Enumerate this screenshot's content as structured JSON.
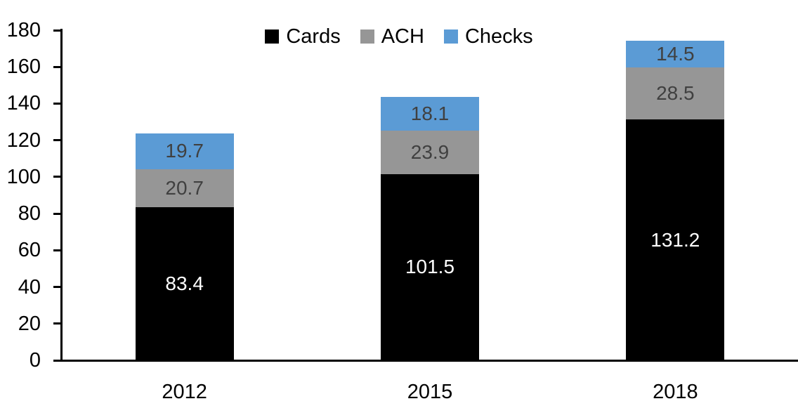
{
  "chart_data": {
    "type": "bar",
    "stacked": true,
    "title": "",
    "categories": [
      "2012",
      "2015",
      "2018"
    ],
    "series": [
      {
        "name": "Cards",
        "color": "#000000",
        "label_color": "#FFFFFF",
        "values": [
          83.4,
          101.5,
          131.2
        ]
      },
      {
        "name": "ACH",
        "color": "#969696",
        "label_color": "#404040",
        "values": [
          20.7,
          23.9,
          28.5
        ]
      },
      {
        "name": "Checks",
        "color": "#5B9BD5",
        "label_color": "#404040",
        "values": [
          19.7,
          18.1,
          14.5
        ]
      }
    ],
    "totals": [
      123.8,
      143.5,
      174.2
    ],
    "ylim": [
      0,
      180
    ],
    "ytick_step": 20,
    "ytick_labels": [
      "0",
      "20",
      "40",
      "60",
      "80",
      "100",
      "120",
      "140",
      "160",
      "180"
    ],
    "xlabel": "",
    "ylabel": "",
    "grid": false,
    "legend_position": "top-center",
    "axis_color": "#000000",
    "value_labels_shown": true
  }
}
